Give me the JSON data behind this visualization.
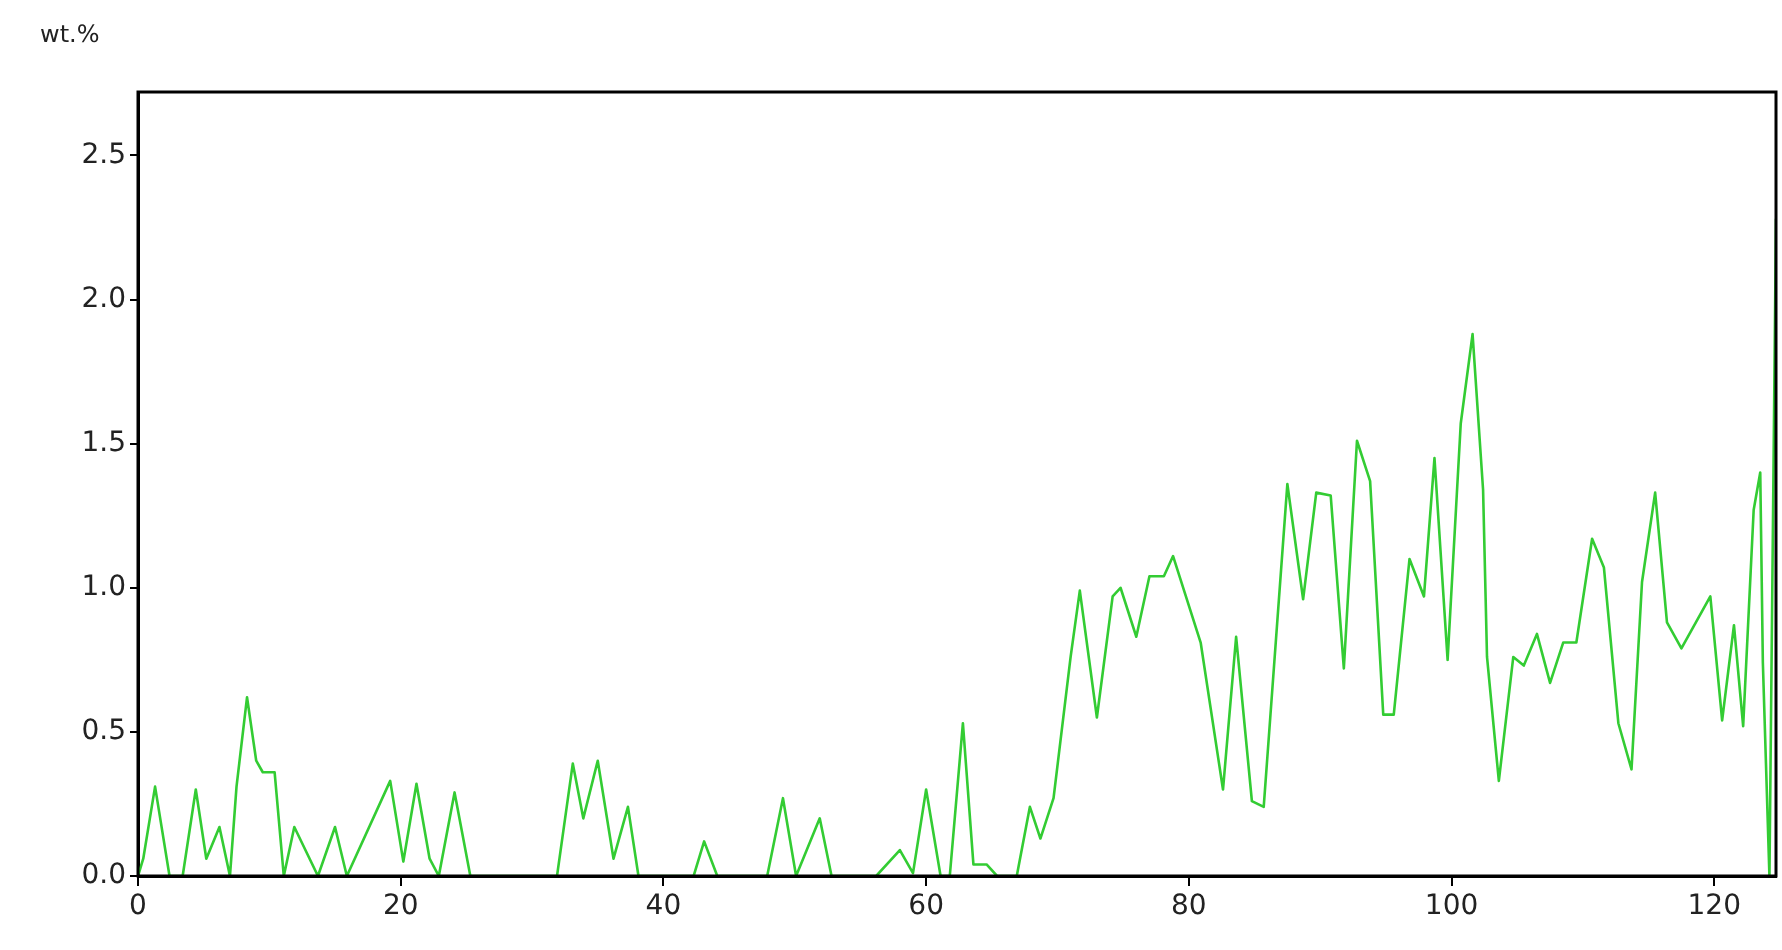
{
  "chart_data": {
    "type": "line",
    "ylabel": "wt.%",
    "xlim": [
      0,
      124.7
    ],
    "ylim": [
      0,
      2.72
    ],
    "xticks": [
      0,
      20,
      40,
      60,
      80,
      100,
      120
    ],
    "yticks": [
      {
        "value": 0,
        "label": "0.0"
      },
      {
        "value": 0.5,
        "label": "0.5"
      },
      {
        "value": 1,
        "label": "1.0"
      },
      {
        "value": 1.5,
        "label": "1.5"
      },
      {
        "value": 2,
        "label": "2.0"
      },
      {
        "value": 2.5,
        "label": "2.5"
      }
    ],
    "grid": false,
    "legend": false,
    "marker": "none",
    "line_style": "solid",
    "series": [
      {
        "color": "#33cc33",
        "x": [
          0,
          0.4,
          1.3,
          2.4,
          3.4,
          4.4,
          5.2,
          6.2,
          7,
          7.5,
          8.3,
          9,
          9.5,
          10.4,
          11.1,
          11.9,
          13.7,
          15,
          15.9,
          19.2,
          20.2,
          21.2,
          22.2,
          22.9,
          24.1,
          25.3,
          31.9,
          33.1,
          33.9,
          35,
          36.2,
          37.3,
          38.1,
          42.3,
          43.1,
          44.1,
          47.9,
          49.1,
          50.1,
          51.9,
          52.8,
          56.2,
          58,
          59,
          60,
          61.1,
          61.8,
          62.8,
          63.6,
          64.6,
          65.4,
          66.9,
          67.9,
          68.7,
          69.7,
          71,
          71.7,
          73,
          74.2,
          74.8,
          76,
          77,
          78.1,
          78.8,
          80.9,
          82.6,
          83.6,
          84.8,
          85.7,
          87.5,
          88.7,
          89.7,
          90.8,
          91.8,
          92.8,
          93.8,
          94.8,
          95.6,
          96.8,
          97.9,
          98.7,
          99.7,
          100.7,
          101.6,
          102.4,
          102.7,
          103.6,
          104.7,
          105.5,
          106.5,
          107.5,
          108.5,
          109.5,
          110.7,
          111.6,
          112.7,
          113.7,
          114.5,
          115.5,
          116.4,
          117.5,
          119.7,
          120.6,
          121.5,
          122.2,
          123,
          123.5,
          123.7,
          124.2,
          124.7
        ],
        "values": [
          0,
          0.06,
          0.31,
          0,
          0,
          0.3,
          0.06,
          0.17,
          0,
          0.31,
          0.62,
          0.4,
          0.36,
          0.36,
          0,
          0.17,
          0,
          0.17,
          0,
          0.33,
          0.05,
          0.32,
          0.06,
          0,
          0.29,
          0,
          0,
          0.39,
          0.2,
          0.4,
          0.06,
          0.24,
          0,
          0,
          0.12,
          0,
          0,
          0.27,
          0,
          0.2,
          0,
          0,
          0.09,
          0.01,
          0.3,
          0,
          0,
          0.53,
          0.04,
          0.04,
          0,
          0,
          0.24,
          0.13,
          0.27,
          0.76,
          0.99,
          0.55,
          0.97,
          1,
          0.83,
          1.04,
          1.04,
          1.11,
          0.81,
          0.3,
          0.83,
          0.26,
          0.24,
          1.36,
          0.96,
          1.33,
          1.32,
          0.72,
          1.51,
          1.37,
          0.56,
          0.56,
          1.1,
          0.97,
          1.45,
          0.75,
          1.57,
          1.88,
          1.34,
          0.76,
          0.33,
          0.76,
          0.73,
          0.84,
          0.67,
          0.81,
          0.81,
          1.17,
          1.07,
          0.53,
          0.37,
          1.02,
          1.33,
          0.88,
          0.79,
          0.97,
          0.54,
          0.87,
          0.52,
          1.27,
          1.4,
          0.74,
          0,
          2.28
        ]
      }
    ]
  }
}
